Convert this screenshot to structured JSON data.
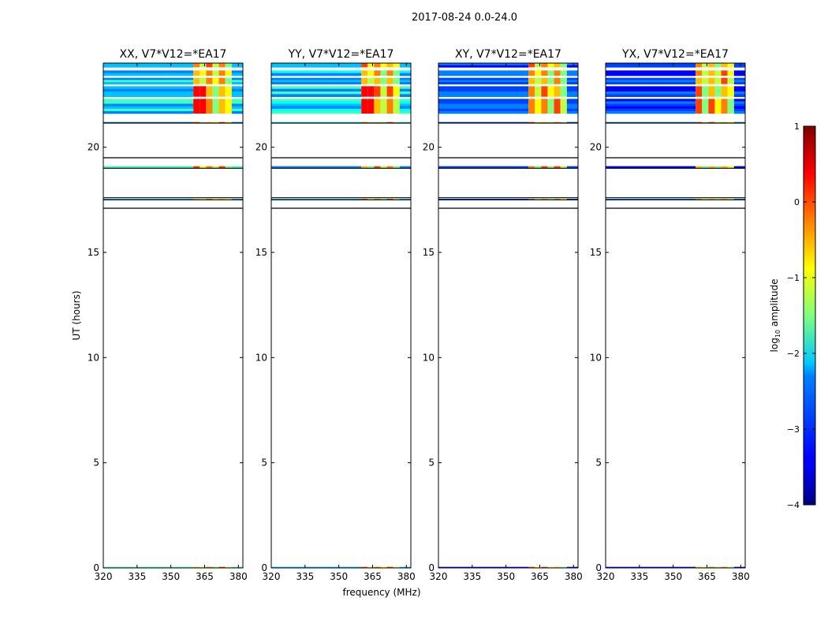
{
  "figure_title": "2017-08-24 0.0-24.0",
  "chart_data": {
    "type": "heatmap",
    "xlabel": "frequency (MHz)",
    "ylabel": "UT (hours)",
    "xlim": [
      320,
      382
    ],
    "ylim": [
      0,
      24
    ],
    "xticks": [
      320,
      335,
      350,
      365,
      380
    ],
    "yticks": [
      0,
      5,
      10,
      15,
      20
    ],
    "panels": [
      {
        "title": "XX, V7*V12=*EA17",
        "polarization": "XX",
        "cross_pol": false
      },
      {
        "title": "YY, V7*V12=*EA17",
        "polarization": "YY",
        "cross_pol": false
      },
      {
        "title": "XY, V7*V12=*EA17",
        "polarization": "XY",
        "cross_pol": true
      },
      {
        "title": "YX, V7*V12=*EA17",
        "polarization": "YX",
        "cross_pol": true
      }
    ],
    "data_time_ranges": [
      {
        "start": 21.6,
        "end": 22.3
      },
      {
        "start": 22.4,
        "end": 22.9
      },
      {
        "start": 23.0,
        "end": 23.3
      },
      {
        "start": 23.4,
        "end": 23.65
      },
      {
        "start": 23.8,
        "end": 24.0
      },
      {
        "start": 21.15,
        "end": 21.2
      },
      {
        "start": 19.0,
        "end": 19.1
      },
      {
        "start": 17.5,
        "end": 17.55
      },
      {
        "start": 0.0,
        "end": 0.05
      }
    ],
    "empty_gap_lines": [
      21.15,
      19.5,
      19.0,
      17.6,
      17.5,
      17.1
    ],
    "bright_band_freq_range": [
      360,
      377
    ],
    "colorbar": {
      "label": "log10 amplitude",
      "label_base": "log",
      "label_sub": "10",
      "label_rest": " amplitude",
      "range": [
        -4,
        1
      ],
      "ticks": [
        1,
        0,
        -1,
        -2,
        -3,
        -4
      ],
      "colormap": "jet"
    }
  }
}
